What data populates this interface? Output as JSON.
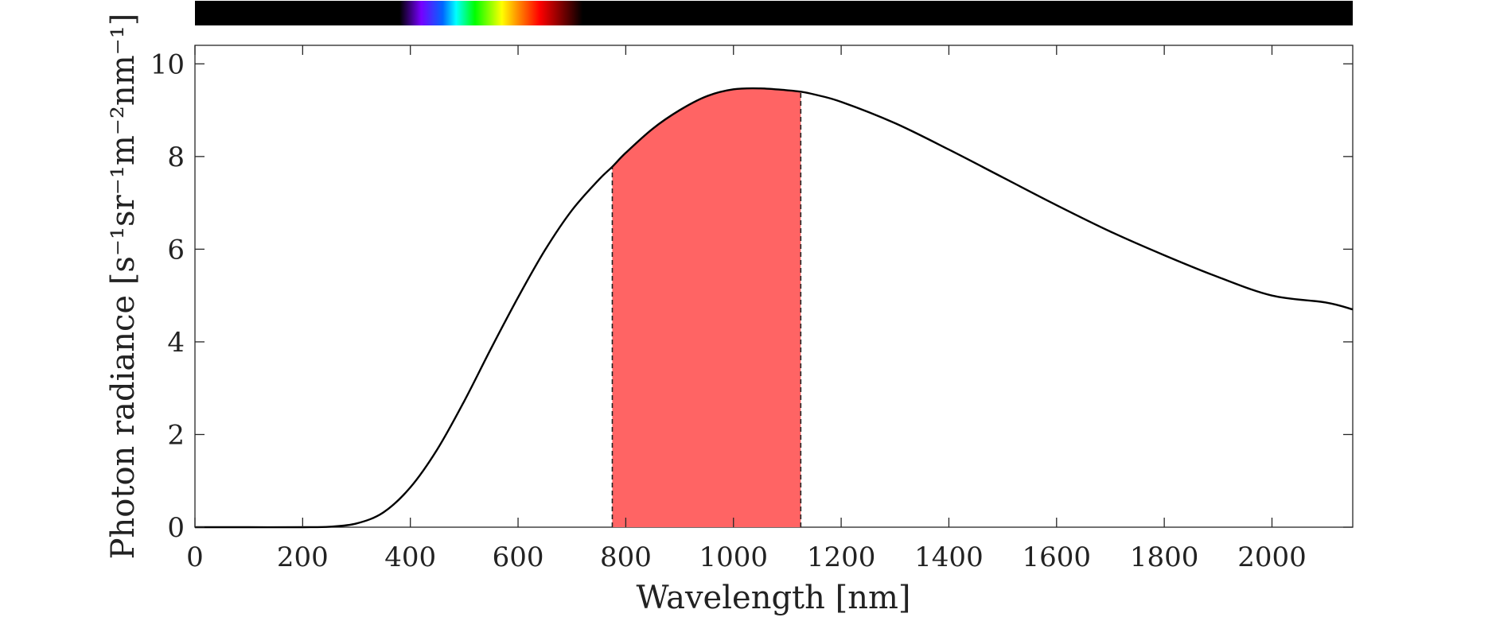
{
  "chart_data": {
    "type": "area",
    "title": "",
    "xlabel": "Wavelength [nm]",
    "ylabel": "Photon radiance [s⁻¹sr⁻¹m⁻²nm⁻¹]",
    "xlim": [
      0,
      2150
    ],
    "ylim": [
      0,
      10.4
    ],
    "xticks": [
      0,
      200,
      400,
      600,
      800,
      1000,
      1200,
      1400,
      1600,
      1800,
      2000
    ],
    "yticks": [
      0,
      2,
      4,
      6,
      8,
      10
    ],
    "grid": false,
    "legend": "none",
    "series": [
      {
        "x": [
          0,
          100,
          200,
          250,
          300,
          350,
          400,
          450,
          500,
          550,
          600,
          650,
          700,
          750,
          775,
          800,
          850,
          900,
          950,
          1000,
          1050,
          1100,
          1125,
          1150,
          1200,
          1300,
          1400,
          1500,
          1600,
          1700,
          1800,
          1900,
          2000,
          2100,
          2150
        ],
        "y": [
          0,
          0,
          0,
          0.01,
          0.08,
          0.32,
          0.86,
          1.68,
          2.72,
          3.86,
          4.96,
          5.98,
          6.84,
          7.5,
          7.78,
          8.08,
          8.6,
          9.0,
          9.3,
          9.45,
          9.47,
          9.43,
          9.4,
          9.34,
          9.18,
          8.72,
          8.15,
          7.55,
          6.95,
          6.38,
          5.87,
          5.4,
          5.0,
          4.85,
          4.7
        ],
        "color": "#000000"
      }
    ],
    "shaded_region": {
      "x_start": 775,
      "x_end": 1125,
      "color": "#ff6464"
    },
    "spectrum_bar": {
      "colors": [
        "#000000",
        "#7700ff",
        "#0066ff",
        "#00ffff",
        "#00ff00",
        "#ffff00",
        "#ff8c00",
        "#ff0000",
        "#000000"
      ],
      "stops_nm": [
        380,
        420,
        460,
        485,
        520,
        570,
        600,
        640,
        720
      ]
    }
  }
}
